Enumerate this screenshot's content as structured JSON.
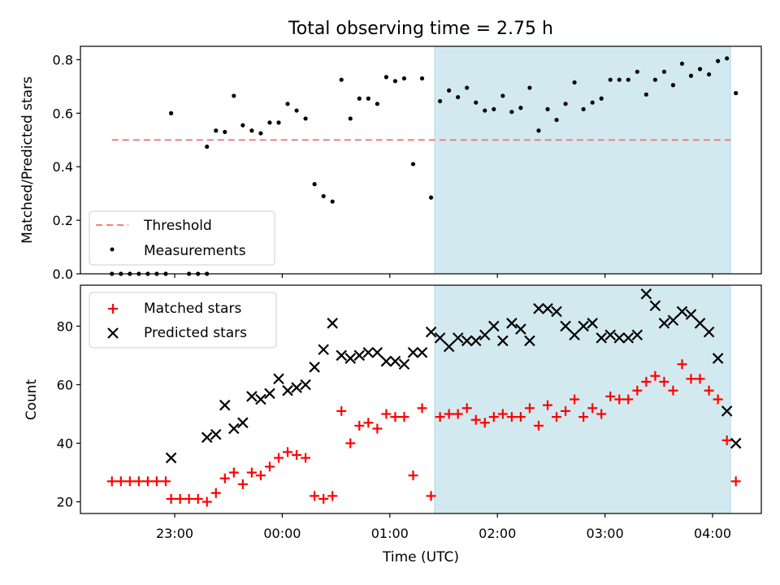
{
  "chart_data": [
    {
      "type": "scatter",
      "title": "Total observing time = 2.75 h",
      "ylabel": "Matched/Predicted stars",
      "xlabel": "",
      "ylim": [
        0.0,
        0.85
      ],
      "yticks": [
        "0.0",
        "0.2",
        "0.4",
        "0.6",
        "0.8"
      ],
      "grid": false,
      "legend_position": "lower-left",
      "shaded_region_x": [
        "01:25",
        "04:10"
      ],
      "shaded_color": "#d3e9f0",
      "threshold": {
        "name": "Threshold",
        "y": 0.5,
        "x_range": [
          "22:25",
          "04:10"
        ],
        "color": "#f08080",
        "style": "dashed"
      },
      "series": [
        {
          "name": "Measurements",
          "color": "#000000",
          "marker": "dot",
          "points": [
            [
              "22:25",
              0.0
            ],
            [
              "22:30",
              0.0
            ],
            [
              "22:35",
              0.0
            ],
            [
              "22:40",
              0.0
            ],
            [
              "22:45",
              0.0
            ],
            [
              "22:50",
              0.0
            ],
            [
              "22:55",
              0.0
            ],
            [
              "22:58",
              0.6
            ],
            [
              "23:08",
              0.0
            ],
            [
              "23:13",
              0.0
            ],
            [
              "23:18",
              0.0
            ],
            [
              "23:18",
              0.475
            ],
            [
              "23:23",
              0.535
            ],
            [
              "23:28",
              0.53
            ],
            [
              "23:33",
              0.665
            ],
            [
              "23:38",
              0.555
            ],
            [
              "23:43",
              0.535
            ],
            [
              "23:48",
              0.525
            ],
            [
              "23:53",
              0.565
            ],
            [
              "23:58",
              0.565
            ],
            [
              "00:03",
              0.635
            ],
            [
              "00:08",
              0.61
            ],
            [
              "00:13",
              0.58
            ],
            [
              "00:18",
              0.335
            ],
            [
              "00:23",
              0.29
            ],
            [
              "00:28",
              0.27
            ],
            [
              "00:33",
              0.725
            ],
            [
              "00:38",
              0.58
            ],
            [
              "00:43",
              0.655
            ],
            [
              "00:48",
              0.655
            ],
            [
              "00:53",
              0.635
            ],
            [
              "00:58",
              0.735
            ],
            [
              "01:03",
              0.72
            ],
            [
              "01:08",
              0.73
            ],
            [
              "01:13",
              0.41
            ],
            [
              "01:18",
              0.73
            ],
            [
              "01:23",
              0.285
            ],
            [
              "01:28",
              0.645
            ],
            [
              "01:33",
              0.685
            ],
            [
              "01:38",
              0.66
            ],
            [
              "01:43",
              0.695
            ],
            [
              "01:48",
              0.64
            ],
            [
              "01:53",
              0.61
            ],
            [
              "01:58",
              0.615
            ],
            [
              "02:03",
              0.665
            ],
            [
              "02:08",
              0.605
            ],
            [
              "02:13",
              0.62
            ],
            [
              "02:18",
              0.695
            ],
            [
              "02:23",
              0.535
            ],
            [
              "02:28",
              0.615
            ],
            [
              "02:33",
              0.575
            ],
            [
              "02:38",
              0.635
            ],
            [
              "02:43",
              0.715
            ],
            [
              "02:48",
              0.615
            ],
            [
              "02:53",
              0.64
            ],
            [
              "02:58",
              0.655
            ],
            [
              "03:03",
              0.725
            ],
            [
              "03:08",
              0.725
            ],
            [
              "03:13",
              0.725
            ],
            [
              "03:18",
              0.755
            ],
            [
              "03:23",
              0.67
            ],
            [
              "03:28",
              0.725
            ],
            [
              "03:33",
              0.755
            ],
            [
              "03:38",
              0.705
            ],
            [
              "03:43",
              0.785
            ],
            [
              "03:48",
              0.74
            ],
            [
              "03:53",
              0.765
            ],
            [
              "03:58",
              0.745
            ],
            [
              "04:03",
              0.795
            ],
            [
              "04:08",
              0.805
            ],
            [
              "04:13",
              0.675
            ]
          ]
        }
      ]
    },
    {
      "type": "scatter",
      "title": "",
      "ylabel": "Count",
      "xlabel": "Time (UTC)",
      "ylim": [
        16,
        94
      ],
      "yticks": [
        "20",
        "40",
        "60",
        "80"
      ],
      "xticks": [
        "23:00",
        "00:00",
        "01:00",
        "02:00",
        "03:00",
        "04:00"
      ],
      "grid": false,
      "legend_position": "upper-left",
      "shaded_region_x": [
        "01:25",
        "04:10"
      ],
      "shaded_color": "#d3e9f0",
      "series": [
        {
          "name": "Matched stars",
          "color": "#ff0000",
          "marker": "plus",
          "points": [
            [
              "22:25",
              27
            ],
            [
              "22:30",
              27
            ],
            [
              "22:35",
              27
            ],
            [
              "22:40",
              27
            ],
            [
              "22:45",
              27
            ],
            [
              "22:50",
              27
            ],
            [
              "22:55",
              27
            ],
            [
              "22:58",
              21
            ],
            [
              "23:03",
              21
            ],
            [
              "23:08",
              21
            ],
            [
              "23:13",
              21
            ],
            [
              "23:18",
              20
            ],
            [
              "23:23",
              23
            ],
            [
              "23:28",
              28
            ],
            [
              "23:33",
              30
            ],
            [
              "23:38",
              26
            ],
            [
              "23:43",
              30
            ],
            [
              "23:48",
              29
            ],
            [
              "23:53",
              32
            ],
            [
              "23:58",
              35
            ],
            [
              "00:03",
              37
            ],
            [
              "00:08",
              36
            ],
            [
              "00:13",
              35
            ],
            [
              "00:18",
              22
            ],
            [
              "00:23",
              21
            ],
            [
              "00:28",
              22
            ],
            [
              "00:33",
              51
            ],
            [
              "00:38",
              40
            ],
            [
              "00:43",
              46
            ],
            [
              "00:48",
              47
            ],
            [
              "00:53",
              45
            ],
            [
              "00:58",
              50
            ],
            [
              "01:03",
              49
            ],
            [
              "01:08",
              49
            ],
            [
              "01:13",
              29
            ],
            [
              "01:18",
              52
            ],
            [
              "01:23",
              22
            ],
            [
              "01:28",
              49
            ],
            [
              "01:33",
              50
            ],
            [
              "01:38",
              50
            ],
            [
              "01:43",
              52
            ],
            [
              "01:48",
              48
            ],
            [
              "01:53",
              47
            ],
            [
              "01:58",
              49
            ],
            [
              "02:03",
              50
            ],
            [
              "02:08",
              49
            ],
            [
              "02:13",
              49
            ],
            [
              "02:18",
              52
            ],
            [
              "02:23",
              46
            ],
            [
              "02:28",
              53
            ],
            [
              "02:33",
              49
            ],
            [
              "02:38",
              51
            ],
            [
              "02:43",
              55
            ],
            [
              "02:48",
              49
            ],
            [
              "02:53",
              52
            ],
            [
              "02:58",
              50
            ],
            [
              "03:03",
              56
            ],
            [
              "03:08",
              55
            ],
            [
              "03:13",
              55
            ],
            [
              "03:18",
              58
            ],
            [
              "03:23",
              61
            ],
            [
              "03:28",
              63
            ],
            [
              "03:33",
              61
            ],
            [
              "03:38",
              58
            ],
            [
              "03:43",
              67
            ],
            [
              "03:48",
              62
            ],
            [
              "03:53",
              62
            ],
            [
              "03:58",
              58
            ],
            [
              "04:03",
              55
            ],
            [
              "04:08",
              41
            ],
            [
              "04:13",
              27
            ]
          ]
        },
        {
          "name": "Predicted stars",
          "color": "#000000",
          "marker": "x",
          "points": [
            [
              "22:58",
              35
            ],
            [
              "23:18",
              42
            ],
            [
              "23:23",
              43
            ],
            [
              "23:28",
              53
            ],
            [
              "23:33",
              45
            ],
            [
              "23:38",
              47
            ],
            [
              "23:43",
              56
            ],
            [
              "23:48",
              55
            ],
            [
              "23:53",
              57
            ],
            [
              "23:58",
              62
            ],
            [
              "00:03",
              58
            ],
            [
              "00:08",
              59
            ],
            [
              "00:13",
              60
            ],
            [
              "00:18",
              66
            ],
            [
              "00:23",
              72
            ],
            [
              "00:28",
              81
            ],
            [
              "00:33",
              70
            ],
            [
              "00:38",
              69
            ],
            [
              "00:43",
              70
            ],
            [
              "00:48",
              71
            ],
            [
              "00:53",
              71
            ],
            [
              "00:58",
              68
            ],
            [
              "01:03",
              68
            ],
            [
              "01:08",
              67
            ],
            [
              "01:13",
              71
            ],
            [
              "01:18",
              71
            ],
            [
              "01:23",
              78
            ],
            [
              "01:28",
              76
            ],
            [
              "01:33",
              73
            ],
            [
              "01:38",
              76
            ],
            [
              "01:43",
              75
            ],
            [
              "01:48",
              75
            ],
            [
              "01:53",
              77
            ],
            [
              "01:58",
              80
            ],
            [
              "02:03",
              75
            ],
            [
              "02:08",
              81
            ],
            [
              "02:13",
              79
            ],
            [
              "02:18",
              75
            ],
            [
              "02:23",
              86
            ],
            [
              "02:28",
              86
            ],
            [
              "02:33",
              85
            ],
            [
              "02:38",
              80
            ],
            [
              "02:43",
              77
            ],
            [
              "02:48",
              80
            ],
            [
              "02:53",
              81
            ],
            [
              "02:58",
              76
            ],
            [
              "03:03",
              77
            ],
            [
              "03:08",
              76
            ],
            [
              "03:13",
              76
            ],
            [
              "03:18",
              77
            ],
            [
              "03:23",
              91
            ],
            [
              "03:28",
              87
            ],
            [
              "03:33",
              81
            ],
            [
              "03:38",
              82
            ],
            [
              "03:43",
              85
            ],
            [
              "03:48",
              84
            ],
            [
              "03:53",
              81
            ],
            [
              "03:58",
              78
            ],
            [
              "04:03",
              69
            ],
            [
              "04:08",
              51
            ],
            [
              "04:13",
              40
            ]
          ]
        }
      ]
    }
  ]
}
